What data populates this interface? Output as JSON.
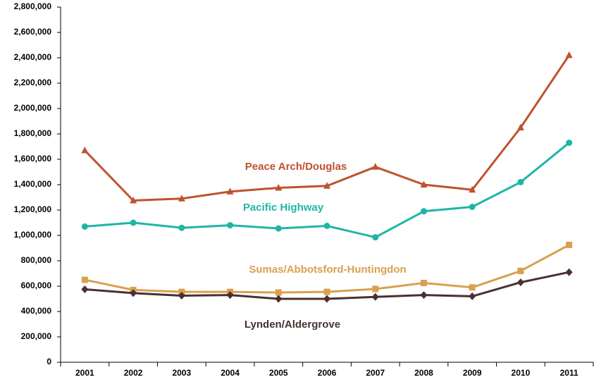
{
  "chart_data": {
    "type": "line",
    "categories": [
      "2001",
      "2002",
      "2003",
      "2004",
      "2005",
      "2006",
      "2007",
      "2008",
      "2009",
      "2010",
      "2011"
    ],
    "series": [
      {
        "name": "Peace Arch/Douglas",
        "color": "#c0512f",
        "marker": "triangle",
        "values": [
          1670000,
          1275000,
          1290000,
          1345000,
          1375000,
          1390000,
          1540000,
          1400000,
          1360000,
          1850000,
          2420000
        ]
      },
      {
        "name": "Pacific Highway",
        "color": "#1fb5a8",
        "marker": "circle",
        "values": [
          1070000,
          1100000,
          1060000,
          1080000,
          1055000,
          1075000,
          985000,
          1190000,
          1225000,
          1420000,
          1730000
        ]
      },
      {
        "name": "Sumas/Abbotsford-Huntingdon",
        "color": "#d9a050",
        "marker": "square",
        "values": [
          650000,
          570000,
          555000,
          555000,
          550000,
          555000,
          578000,
          625000,
          590000,
          720000,
          925000
        ]
      },
      {
        "name": "Lynden/Aldergrove",
        "color": "#4a3030",
        "marker": "diamond",
        "values": [
          575000,
          545000,
          525000,
          530000,
          500000,
          500000,
          515000,
          530000,
          520000,
          630000,
          710000
        ]
      }
    ],
    "ylim": [
      0,
      2800000
    ],
    "yticks": [
      0,
      {
        "value": 200000,
        "label": "200,000"
      },
      {
        "value": 400000,
        "label": "400,000"
      },
      {
        "value": 600000,
        "label": "600,000"
      },
      {
        "value": 800000,
        "label": "800,000"
      },
      {
        "value": 1000000,
        "label": "1,000,000"
      },
      {
        "value": 1200000,
        "label": "1,200,000"
      },
      {
        "value": 1400000,
        "label": "1,400,000"
      },
      {
        "value": 1600000,
        "label": "1,600,000"
      },
      {
        "value": 1800000,
        "label": "1,800,000"
      },
      {
        "value": 2000000,
        "label": "2,000,000"
      },
      {
        "value": 2200000,
        "label": "2,200,000"
      },
      {
        "value": 2400000,
        "label": "2,400,000"
      },
      {
        "value": 2600000,
        "label": "2,600,000"
      },
      {
        "value": 2800000,
        "label": "2,800,000"
      }
    ],
    "grid": false
  }
}
